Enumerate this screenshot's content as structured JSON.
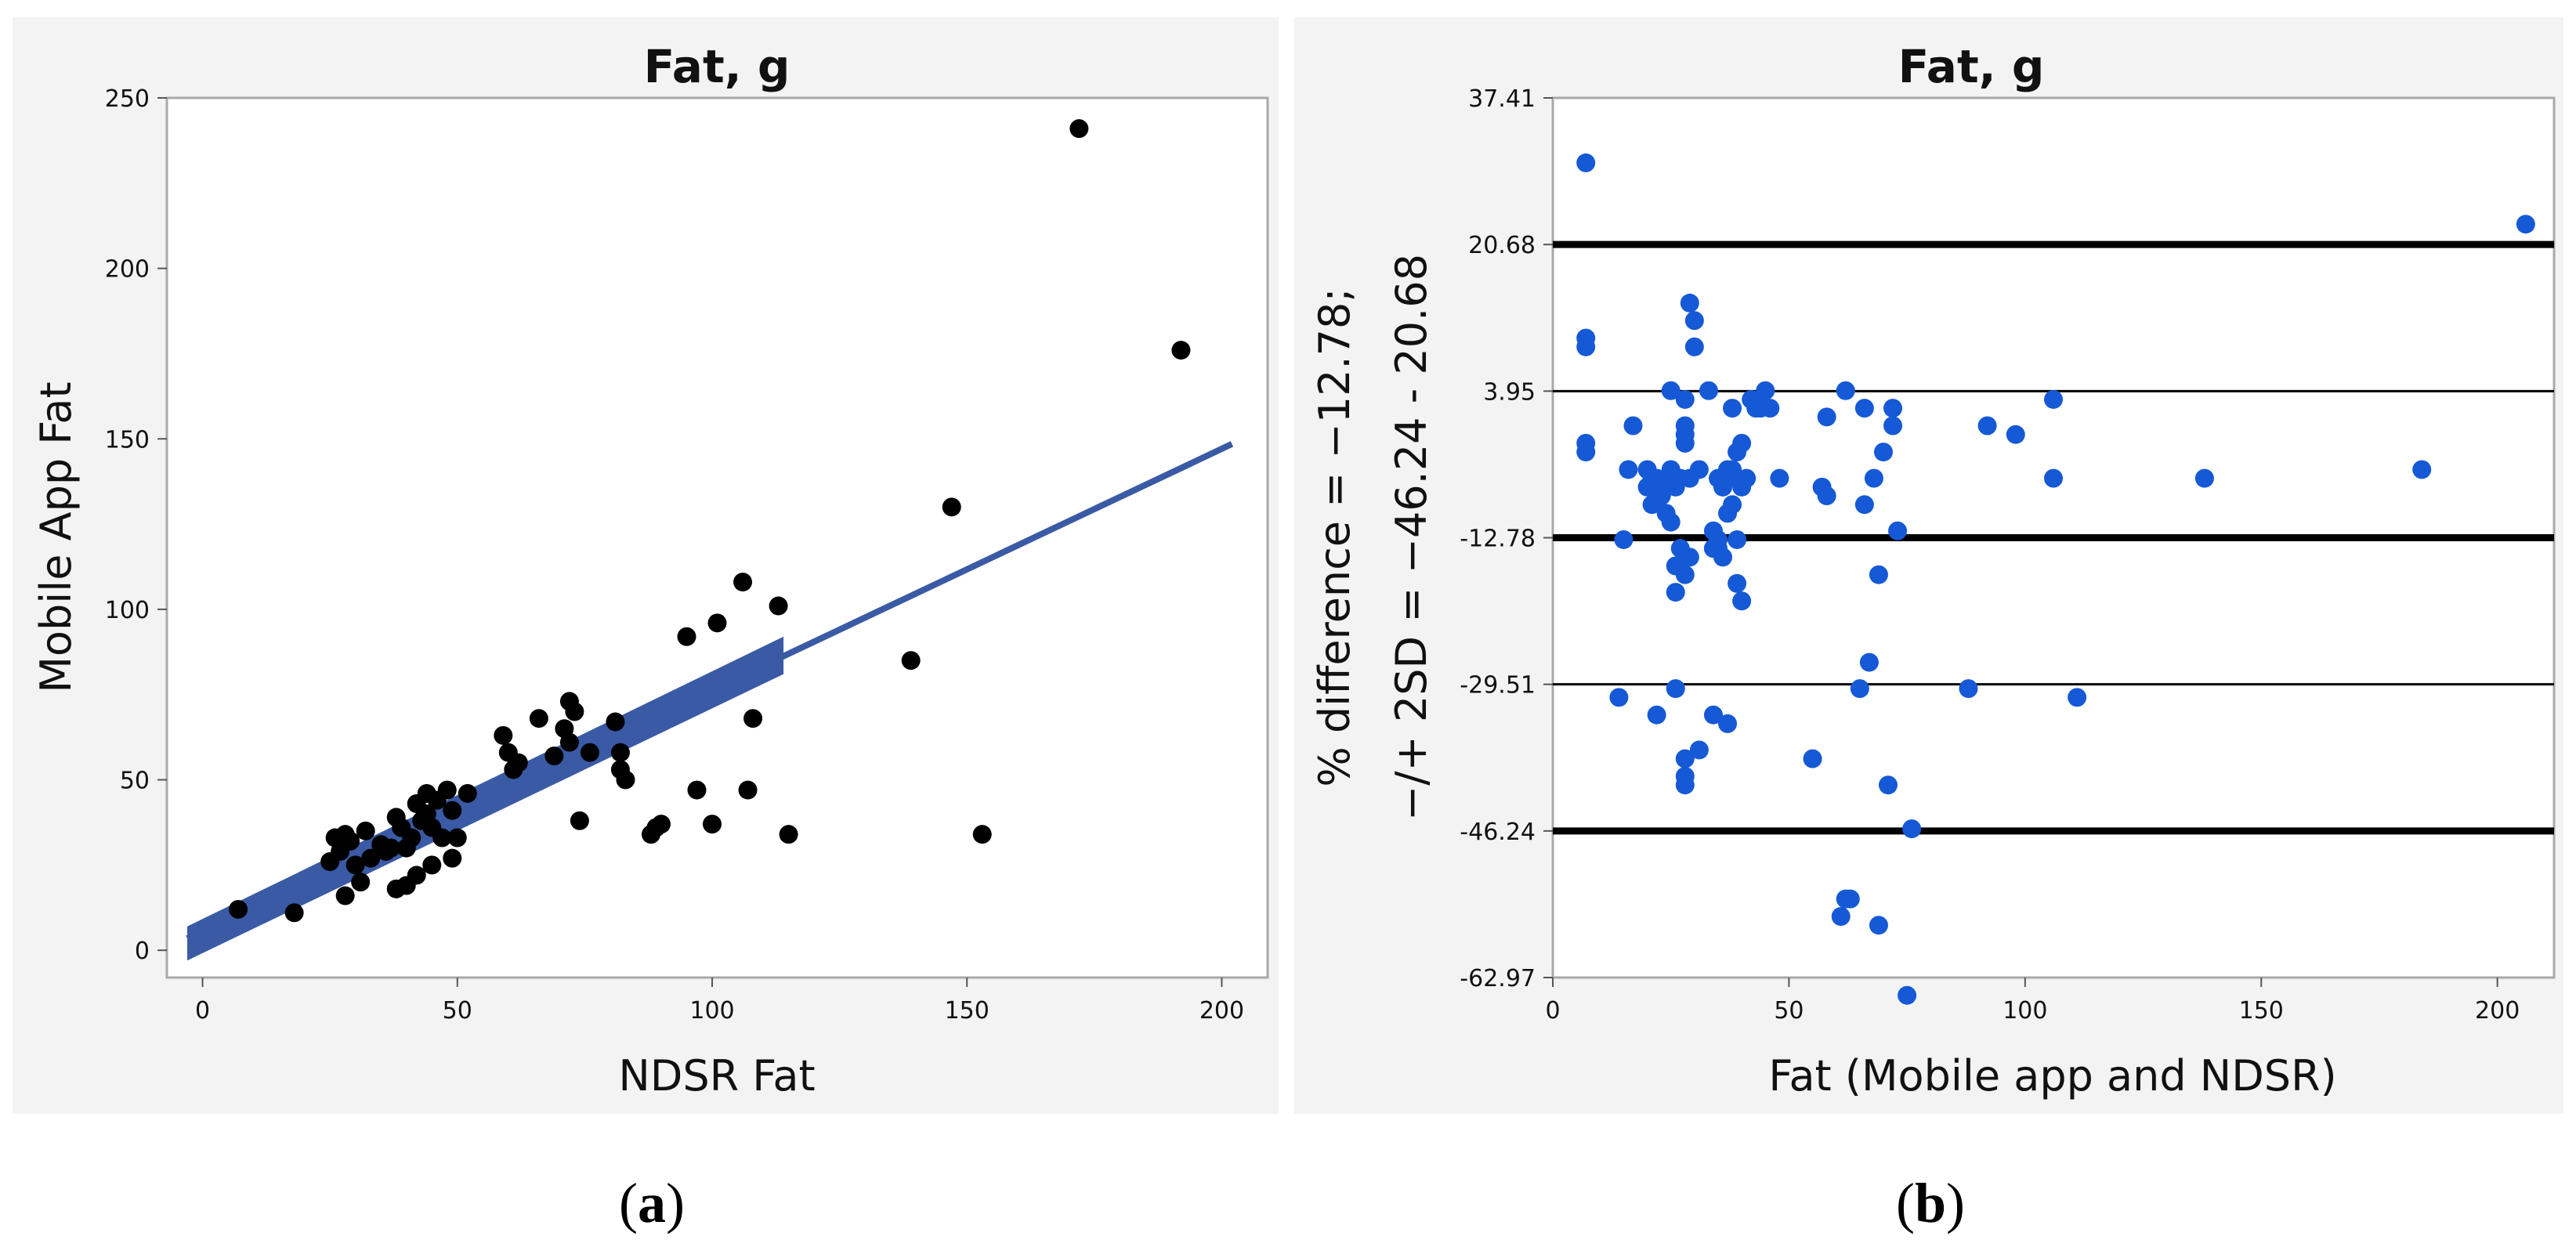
{
  "panels": {
    "a": {
      "caption_open": "(",
      "caption_letter": "a",
      "caption_close": ")"
    },
    "b": {
      "caption_open": "(",
      "caption_letter": "b",
      "caption_close": ")"
    }
  },
  "colors": {
    "scatter_a": "#000000",
    "fit_line": "#3a5aa5",
    "confidence_band": "#3a5aa5",
    "scatter_b": "#1559d6",
    "ref_lines": "#000000"
  },
  "chart_data": [
    {
      "type": "scatter",
      "title": "Fat, g",
      "xlabel": "NDSR Fat",
      "ylabel": "Mobile App Fat",
      "xlim": [
        -7,
        209
      ],
      "ylim": [
        -8,
        250
      ],
      "xticks": [
        0,
        50,
        100,
        150,
        200
      ],
      "yticks": [
        0,
        50,
        100,
        150,
        200,
        250
      ],
      "fit_line": {
        "x": [
          -3,
          202
        ],
        "y": [
          3.5,
          148.5
        ]
      },
      "confidence_band": {
        "x": [
          -3,
          114
        ],
        "lower": [
          -3,
          81
        ],
        "upper": [
          7,
          92
        ]
      },
      "points": [
        [
          7,
          12
        ],
        [
          18,
          11
        ],
        [
          25,
          26
        ],
        [
          26,
          33
        ],
        [
          27,
          29
        ],
        [
          28,
          34
        ],
        [
          28,
          16
        ],
        [
          29,
          32
        ],
        [
          30,
          25
        ],
        [
          31,
          20
        ],
        [
          32,
          35
        ],
        [
          33,
          27
        ],
        [
          35,
          31
        ],
        [
          36,
          29
        ],
        [
          37,
          30
        ],
        [
          38,
          18
        ],
        [
          38,
          39
        ],
        [
          39,
          36
        ],
        [
          40,
          19
        ],
        [
          40,
          30
        ],
        [
          41,
          33
        ],
        [
          42,
          43
        ],
        [
          42,
          22
        ],
        [
          43,
          38
        ],
        [
          44,
          40
        ],
        [
          44,
          46
        ],
        [
          45,
          36
        ],
        [
          45,
          25
        ],
        [
          46,
          44
        ],
        [
          47,
          33
        ],
        [
          48,
          47
        ],
        [
          49,
          41
        ],
        [
          50,
          33
        ],
        [
          49,
          27
        ],
        [
          52,
          46
        ],
        [
          59,
          63
        ],
        [
          60,
          58
        ],
        [
          61,
          53
        ],
        [
          62,
          55
        ],
        [
          66,
          68
        ],
        [
          69,
          57
        ],
        [
          71,
          65
        ],
        [
          72,
          73
        ],
        [
          72,
          61
        ],
        [
          73,
          70
        ],
        [
          74,
          38
        ],
        [
          76,
          58
        ],
        [
          81,
          67
        ],
        [
          82,
          53
        ],
        [
          82,
          58
        ],
        [
          83,
          50
        ],
        [
          88,
          34
        ],
        [
          89,
          36
        ],
        [
          90,
          37
        ],
        [
          95,
          92
        ],
        [
          97,
          47
        ],
        [
          100,
          37
        ],
        [
          101,
          96
        ],
        [
          106,
          108
        ],
        [
          107,
          47
        ],
        [
          108,
          68
        ],
        [
          113,
          101
        ],
        [
          115,
          34
        ],
        [
          139,
          85
        ],
        [
          147,
          130
        ],
        [
          153,
          34
        ],
        [
          172,
          241
        ],
        [
          192,
          176
        ]
      ]
    },
    {
      "type": "scatter",
      "title": "Fat, g",
      "xlabel": "Fat (Mobile app and NDSR)",
      "ylabel_line1": "% difference = −12.78;",
      "ylabel_line2": "−/+ 2SD = −46.24 - 20.68",
      "xlim": [
        0,
        212
      ],
      "ylim": [
        -62.97,
        37.41
      ],
      "xticks": [
        0,
        50,
        100,
        150,
        200
      ],
      "ytick_labels": [
        "37.41",
        "20.68",
        "3.95",
        "-12.78",
        "-29.51",
        "-46.24",
        "-62.97"
      ],
      "yticks": [
        37.41,
        20.68,
        3.95,
        -12.78,
        -29.51,
        -46.24,
        -62.97
      ],
      "reference_lines": [
        {
          "y": 20.68,
          "style": "thick"
        },
        {
          "y": 3.95,
          "style": "thin"
        },
        {
          "y": -12.78,
          "style": "thick"
        },
        {
          "y": -29.51,
          "style": "thin"
        },
        {
          "y": -46.24,
          "style": "thick"
        }
      ],
      "points": [
        [
          7,
          30
        ],
        [
          7,
          10
        ],
        [
          7,
          9
        ],
        [
          7,
          -2
        ],
        [
          7,
          -3
        ],
        [
          14,
          -31
        ],
        [
          15,
          -13
        ],
        [
          17,
          0
        ],
        [
          16,
          -5
        ],
        [
          20,
          -5
        ],
        [
          20,
          -7
        ],
        [
          21,
          -6
        ],
        [
          21,
          -9
        ],
        [
          22,
          -6
        ],
        [
          22,
          -33
        ],
        [
          23,
          -8
        ],
        [
          24,
          -7
        ],
        [
          24,
          -10
        ],
        [
          25,
          -6
        ],
        [
          25,
          4
        ],
        [
          25,
          -5
        ],
        [
          25,
          -11
        ],
        [
          26,
          -7
        ],
        [
          26,
          -30
        ],
        [
          26,
          -16
        ],
        [
          26,
          -19
        ],
        [
          27,
          -14
        ],
        [
          27,
          -6
        ],
        [
          28,
          0
        ],
        [
          28,
          -2
        ],
        [
          28,
          -1
        ],
        [
          28,
          3
        ],
        [
          28,
          -17
        ],
        [
          28,
          -38
        ],
        [
          28,
          -40
        ],
        [
          28,
          -41
        ],
        [
          29,
          -15
        ],
        [
          29,
          -6
        ],
        [
          29,
          14
        ],
        [
          30,
          12
        ],
        [
          30,
          9
        ],
        [
          31,
          -5
        ],
        [
          31,
          -37
        ],
        [
          33,
          4
        ],
        [
          34,
          -12
        ],
        [
          34,
          -14
        ],
        [
          34,
          -14
        ],
        [
          34,
          -33
        ],
        [
          35,
          -14
        ],
        [
          35,
          -13
        ],
        [
          35,
          -6
        ],
        [
          36,
          -7
        ],
        [
          36,
          -15
        ],
        [
          37,
          -10
        ],
        [
          37,
          -5
        ],
        [
          37,
          -34
        ],
        [
          38,
          -9
        ],
        [
          38,
          -5
        ],
        [
          38,
          2
        ],
        [
          39,
          -13
        ],
        [
          39,
          -3
        ],
        [
          39,
          -6
        ],
        [
          39,
          -18
        ],
        [
          40,
          -2
        ],
        [
          40,
          -20
        ],
        [
          40,
          -7
        ],
        [
          41,
          -6
        ],
        [
          42,
          3
        ],
        [
          43,
          2
        ],
        [
          44,
          2
        ],
        [
          45,
          4
        ],
        [
          46,
          2
        ],
        [
          48,
          -6
        ],
        [
          55,
          -38
        ],
        [
          57,
          -7
        ],
        [
          58,
          -8
        ],
        [
          58,
          1
        ],
        [
          61,
          -56
        ],
        [
          62,
          4
        ],
        [
          62,
          -54
        ],
        [
          63,
          -54
        ],
        [
          65,
          -30
        ],
        [
          66,
          -9
        ],
        [
          66,
          2
        ],
        [
          67,
          -27
        ],
        [
          68,
          -6
        ],
        [
          69,
          -17
        ],
        [
          69,
          -57
        ],
        [
          70,
          -3
        ],
        [
          71,
          -41
        ],
        [
          72,
          0
        ],
        [
          72,
          2
        ],
        [
          73,
          -12
        ],
        [
          75,
          -65
        ],
        [
          76,
          -46
        ],
        [
          88,
          -30
        ],
        [
          92,
          0
        ],
        [
          98,
          -1
        ],
        [
          106,
          -6
        ],
        [
          106,
          3
        ],
        [
          111,
          -31
        ],
        [
          138,
          -6
        ],
        [
          184,
          -5
        ],
        [
          206,
          23
        ]
      ]
    }
  ]
}
